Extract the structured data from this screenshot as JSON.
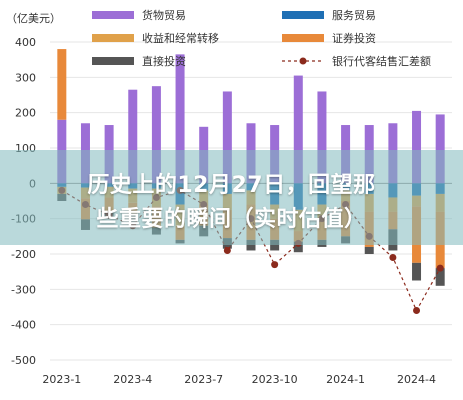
{
  "chart_data": {
    "type": "bar",
    "unit_label": "（亿美元）",
    "y_ticks": [
      400,
      300,
      200,
      100,
      0,
      -100,
      -200,
      -300,
      -400,
      -500
    ],
    "ylim": [
      -500,
      400
    ],
    "x_tick_labels": [
      "2023-1",
      "2023-4",
      "2023-7",
      "2023-10",
      "2024-1",
      "2024-4"
    ],
    "categories": [
      "2023-1",
      "2023-2",
      "2023-3",
      "2023-4",
      "2023-5",
      "2023-6",
      "2023-7",
      "2023-8",
      "2023-9",
      "2023-10",
      "2023-11",
      "2023-12",
      "2024-1",
      "2024-2",
      "2024-3",
      "2024-4",
      "2024-5"
    ],
    "legend": [
      {
        "name": "货物贸易",
        "color": "#9c6ed6",
        "kind": "bar"
      },
      {
        "name": "服务贸易",
        "color": "#1f6fb4",
        "kind": "bar"
      },
      {
        "name": "收益和经常转移",
        "color": "#e0a14a",
        "kind": "bar"
      },
      {
        "name": "证券投资",
        "color": "#e8893a",
        "kind": "bar"
      },
      {
        "name": "直接投资",
        "color": "#555555",
        "kind": "bar"
      },
      {
        "name": "银行代客结售汇差额",
        "color": "#8b2a1c",
        "kind": "line"
      }
    ],
    "series": [
      {
        "name": "货物贸易",
        "values": [
          180,
          170,
          165,
          265,
          275,
          365,
          160,
          260,
          170,
          165,
          305,
          260,
          165,
          165,
          170,
          205,
          195
        ]
      },
      {
        "name": "服务贸易",
        "values": [
          -10,
          -12,
          -10,
          -15,
          -15,
          -60,
          -20,
          -30,
          -20,
          -60,
          -75,
          -60,
          -20,
          -30,
          -40,
          -35,
          -30
        ]
      },
      {
        "name": "收益和经常转移",
        "values": [
          -20,
          -30,
          -30,
          -40,
          -50,
          -60,
          -40,
          -45,
          -40,
          -40,
          -60,
          -40,
          -30,
          -50,
          -40,
          -30,
          -50
        ]
      },
      {
        "name": "证券投资",
        "values": [
          200,
          -60,
          -40,
          -30,
          -60,
          -40,
          -60,
          -80,
          -100,
          -60,
          -30,
          -60,
          -100,
          -100,
          -50,
          -160,
          -160
        ]
      },
      {
        "name": "直接投资",
        "values": [
          -20,
          -30,
          -20,
          -30,
          -20,
          -10,
          -30,
          -30,
          -30,
          -30,
          -30,
          -20,
          -20,
          -20,
          -60,
          -50,
          -50
        ]
      }
    ],
    "line_series": {
      "name": "银行代客结售汇差额",
      "values": [
        -20,
        -60,
        -90,
        -120,
        -40,
        -20,
        -60,
        -190,
        -100,
        -230,
        -170,
        -100,
        -60,
        -150,
        -210,
        -360,
        -240
      ]
    }
  },
  "overlay": {
    "line1": "历史上的12月27日，回望那",
    "line2": "些重要的瞬间（实时估值）"
  }
}
